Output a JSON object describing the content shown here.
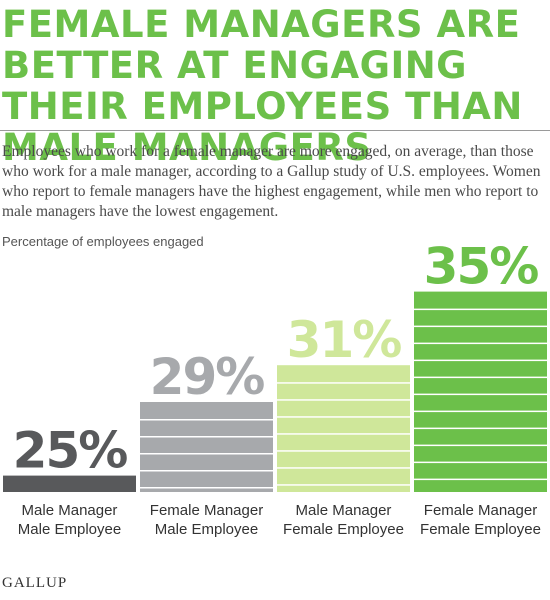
{
  "header": {
    "title": "FEMALE MANAGERS ARE BETTER AT ENGAGING THEIR EMPLOYEES THAN MALE MANAGERS",
    "description": "Employees who work for a female manager are more engaged, on average, than those who work for a male manager, according to a Gallup study of U.S. employees. Women who report to female managers have the highest engagement, while men who report to male managers have the lowest engagement."
  },
  "chart_data": {
    "type": "bar",
    "ylabel": "Percentage of employees engaged",
    "categories": [
      [
        "Male Manager",
        "Male Employee"
      ],
      [
        "Female Manager",
        "Male Employee"
      ],
      [
        "Male Manager",
        "Female Employee"
      ],
      [
        "Female Manager",
        "Female Employee"
      ]
    ],
    "values": [
      25,
      29,
      31,
      35
    ],
    "value_labels": [
      "25%",
      "29%",
      "31%",
      "35%"
    ],
    "colors": [
      "#58595b",
      "#a7a9ac",
      "#cfe79a",
      "#6cc04a"
    ],
    "label_colors": [
      "#58595b",
      "#a7a9ac",
      "#cfe79a",
      "#6cc04a"
    ]
  },
  "footer": {
    "brand": "GALLUP"
  }
}
